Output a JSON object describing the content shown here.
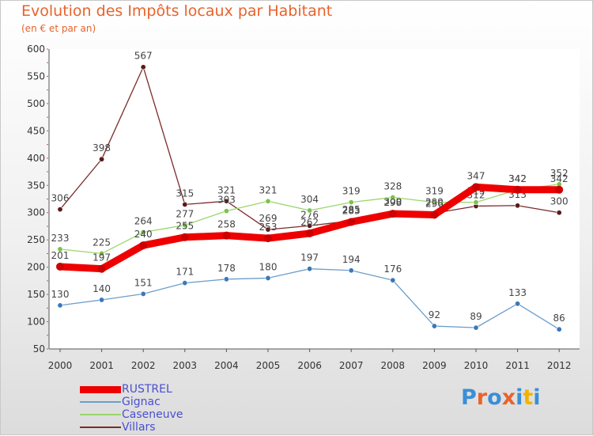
{
  "title": "Evolution des Impôts locaux par Habitant",
  "subtitle": "(en € et par an)",
  "logo": {
    "chars": [
      "P",
      "r",
      "o",
      "x",
      "i",
      "t",
      "i"
    ],
    "colors": [
      "#3a8fd6",
      "#e8632c",
      "#3a8fd6",
      "#e8632c",
      "#3a8fd6",
      "#f0b400",
      "#3a8fd6"
    ]
  },
  "chart_data": {
    "type": "line",
    "title": "Evolution des Impôts locaux par Habitant",
    "subtitle": "(en € et par an)",
    "xlabel": "",
    "ylabel": "",
    "x": [
      "2000",
      "2001",
      "2002",
      "2003",
      "2004",
      "2005",
      "2006",
      "2007",
      "2008",
      "2009",
      "2010",
      "2011",
      "2012"
    ],
    "ylim": [
      50,
      600
    ],
    "yticks": [
      50,
      100,
      150,
      200,
      250,
      300,
      350,
      400,
      450,
      500,
      550,
      600
    ],
    "grid": false,
    "legend_position": "bottom-left",
    "series": [
      {
        "name": "RUSTREL",
        "color": "#ee0000",
        "values": [
          201,
          197,
          240,
          255,
          258,
          253,
          262,
          283,
          298,
          296,
          347,
          342,
          342
        ],
        "labels": [
          "201",
          "197",
          "240",
          "255",
          "258",
          "253",
          "262",
          "283",
          "298",
          "296",
          "347",
          "342",
          "342"
        ]
      },
      {
        "name": "Gignac",
        "color": "#6d9ec9",
        "values": [
          130,
          140,
          151,
          171,
          178,
          180,
          197,
          194,
          176,
          92,
          89,
          133,
          86
        ],
        "labels": [
          "130",
          "140",
          "151",
          "171",
          "178",
          "180",
          "197",
          "194",
          "176",
          "92",
          "89",
          "133",
          "86"
        ]
      },
      {
        "name": "Caseneuve",
        "color": "#9ad66b",
        "values": [
          233,
          225,
          264,
          277,
          303,
          321,
          304,
          319,
          328,
          319,
          319,
          342,
          352
        ],
        "labels": [
          "233",
          "225",
          "264",
          "277",
          "303",
          "321",
          "304",
          "319",
          "328",
          "319",
          "319",
          "342",
          "352"
        ]
      },
      {
        "name": "Villars",
        "color": "#7b2b2b",
        "values": [
          306,
          398,
          567,
          315,
          321,
          269,
          276,
          285,
          300,
          299,
          312,
          313,
          300
        ],
        "labels": [
          "306",
          "398",
          "567",
          "315",
          "321",
          "269",
          "276",
          "285",
          "300",
          "299",
          "312",
          "313",
          "300"
        ]
      }
    ]
  }
}
